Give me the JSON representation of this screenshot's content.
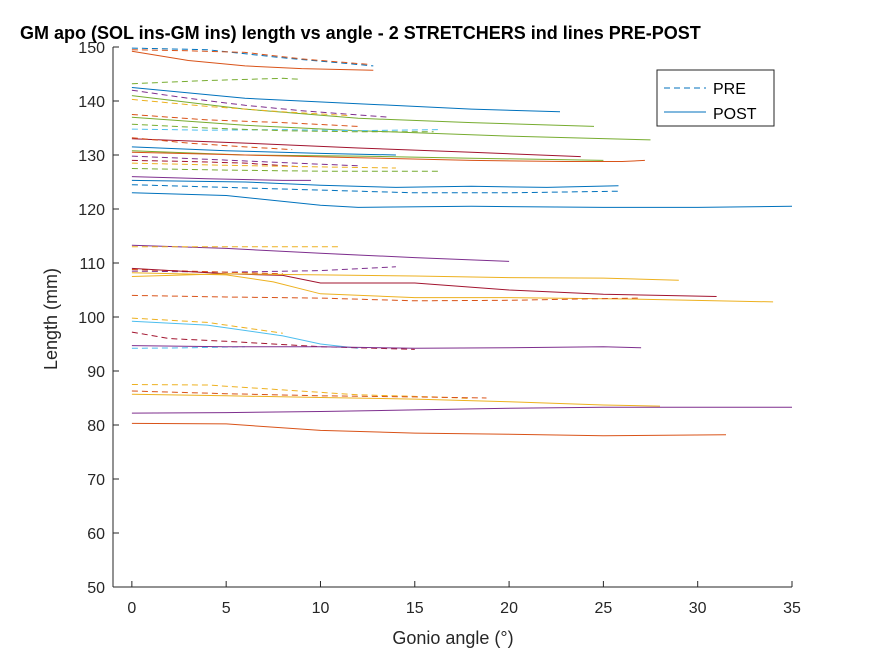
{
  "chart_data": {
    "type": "line",
    "title": "GM apo (SOL ins-GM ins) length vs angle - 2 STRETCHERS ind lines PRE-POST",
    "xlabel": "Gonio angle (°)",
    "ylabel": "Length (mm)",
    "xlim": [
      -1,
      35
    ],
    "ylim": [
      50,
      150
    ],
    "xticks": [
      0,
      5,
      10,
      15,
      20,
      25,
      30,
      35
    ],
    "yticks": [
      50,
      60,
      70,
      80,
      90,
      100,
      110,
      120,
      130,
      140,
      150
    ],
    "grid": false,
    "legend": {
      "placement": "top-right",
      "entries": [
        {
          "label": "PRE",
          "style": "dashed"
        },
        {
          "label": "POST",
          "style": "solid"
        }
      ]
    },
    "colors": [
      "#0072BD",
      "#D95319",
      "#EDB120",
      "#7E2F8E",
      "#77AC30",
      "#4DBEEE",
      "#A2142F"
    ],
    "series": [
      {
        "style": "dashed",
        "color": "#0072BD",
        "points": [
          [
            0,
            149.8
          ],
          [
            4,
            149.5
          ],
          [
            8,
            148
          ],
          [
            12.8,
            146.5
          ]
        ]
      },
      {
        "style": "dashed",
        "color": "#D95319",
        "points": [
          [
            0,
            149.5
          ],
          [
            3,
            149.3
          ],
          [
            6,
            149
          ],
          [
            9,
            147.8
          ],
          [
            12.5,
            146.8
          ]
        ]
      },
      {
        "style": "solid",
        "color": "#D95319",
        "points": [
          [
            0,
            149.2
          ],
          [
            3,
            147.5
          ],
          [
            6,
            146.5
          ],
          [
            9,
            146
          ],
          [
            12.8,
            145.7
          ]
        ]
      },
      {
        "style": "dashed",
        "color": "#77AC30",
        "points": [
          [
            0,
            143.2
          ],
          [
            4,
            143.8
          ],
          [
            8,
            144.2
          ],
          [
            9,
            144
          ]
        ]
      },
      {
        "style": "solid",
        "color": "#0072BD",
        "points": [
          [
            0,
            142.5
          ],
          [
            6,
            140.5
          ],
          [
            12,
            139.5
          ],
          [
            18,
            138.5
          ],
          [
            22.7,
            138
          ]
        ]
      },
      {
        "style": "dashed",
        "color": "#7E2F8E",
        "points": [
          [
            0,
            142
          ],
          [
            3,
            140.5
          ],
          [
            6,
            139.2
          ],
          [
            9,
            138.2
          ],
          [
            13.6,
            137
          ]
        ]
      },
      {
        "style": "solid",
        "color": "#77AC30",
        "points": [
          [
            0,
            141
          ],
          [
            6,
            138.5
          ],
          [
            12,
            136.8
          ],
          [
            18,
            136
          ],
          [
            24.5,
            135.3
          ]
        ]
      },
      {
        "style": "dashed",
        "color": "#EDB120",
        "points": [
          [
            0,
            140.3
          ],
          [
            4,
            139
          ],
          [
            8,
            138
          ],
          [
            11.5,
            137.3
          ]
        ]
      },
      {
        "style": "solid",
        "color": "#77AC30",
        "points": [
          [
            0,
            137
          ],
          [
            6,
            135.5
          ],
          [
            12,
            134.5
          ],
          [
            20,
            133.5
          ],
          [
            27.5,
            132.8
          ]
        ]
      },
      {
        "style": "dashed",
        "color": "#D95319",
        "points": [
          [
            0,
            137.5
          ],
          [
            4,
            136.5
          ],
          [
            8,
            136
          ],
          [
            12,
            135.3
          ]
        ]
      },
      {
        "style": "dashed",
        "color": "#4DBEEE",
        "points": [
          [
            0,
            134.8
          ],
          [
            4,
            134.6
          ],
          [
            8,
            134.7
          ],
          [
            12,
            134.5
          ],
          [
            16.3,
            134.7
          ]
        ]
      },
      {
        "style": "dashed",
        "color": "#77AC30",
        "points": [
          [
            0,
            135.7
          ],
          [
            4,
            135
          ],
          [
            8,
            134.5
          ],
          [
            12,
            134.3
          ],
          [
            16,
            134.3
          ]
        ]
      },
      {
        "style": "solid",
        "color": "#A2142F",
        "points": [
          [
            0,
            133
          ],
          [
            6,
            132.2
          ],
          [
            12,
            131.3
          ],
          [
            18,
            130.5
          ],
          [
            23.8,
            129.7
          ]
        ]
      },
      {
        "style": "dashed",
        "color": "#D95319",
        "points": [
          [
            0,
            133.2
          ],
          [
            3,
            132.2
          ],
          [
            6,
            131.5
          ],
          [
            8.5,
            131
          ]
        ]
      },
      {
        "style": "solid",
        "color": "#77AC30",
        "points": [
          [
            0,
            130.8
          ],
          [
            6,
            130
          ],
          [
            12,
            129.8
          ],
          [
            18,
            129.4
          ],
          [
            25,
            129
          ]
        ]
      },
      {
        "style": "solid",
        "color": "#D95319",
        "points": [
          [
            0,
            130.5
          ],
          [
            6,
            130
          ],
          [
            12,
            129.5
          ],
          [
            18,
            129
          ],
          [
            23,
            128.8
          ],
          [
            26,
            128.8
          ],
          [
            27.2,
            129
          ]
        ]
      },
      {
        "style": "solid",
        "color": "#0072BD",
        "points": [
          [
            0,
            131.5
          ],
          [
            5,
            130.8
          ],
          [
            10,
            130.3
          ],
          [
            14,
            130
          ]
        ]
      },
      {
        "style": "dashed",
        "color": "#7E2F8E",
        "points": [
          [
            0,
            129.8
          ],
          [
            4,
            129.2
          ],
          [
            8,
            128.6
          ],
          [
            12,
            128
          ]
        ]
      },
      {
        "style": "dashed",
        "color": "#A2142F",
        "points": [
          [
            0,
            129
          ],
          [
            3,
            128.8
          ],
          [
            6,
            128.5
          ],
          [
            9,
            127.8
          ]
        ]
      },
      {
        "style": "dashed",
        "color": "#EDB120",
        "points": [
          [
            0,
            128.5
          ],
          [
            5,
            128.1
          ],
          [
            10,
            127.8
          ],
          [
            14,
            127.6
          ]
        ]
      },
      {
        "style": "dashed",
        "color": "#77AC30",
        "points": [
          [
            0,
            127.5
          ],
          [
            5,
            127.2
          ],
          [
            10,
            127
          ],
          [
            16.3,
            127
          ]
        ]
      },
      {
        "style": "solid",
        "color": "#7E2F8E",
        "points": [
          [
            0,
            126
          ],
          [
            4,
            125.6
          ],
          [
            8,
            125.3
          ],
          [
            9.5,
            125.3
          ]
        ]
      },
      {
        "style": "solid",
        "color": "#0072BD",
        "points": [
          [
            0,
            125.3
          ],
          [
            6,
            125
          ],
          [
            10,
            124.4
          ],
          [
            14,
            124
          ],
          [
            18,
            124.2
          ],
          [
            22,
            124
          ],
          [
            25.8,
            124.3
          ]
        ]
      },
      {
        "style": "dashed",
        "color": "#0072BD",
        "points": [
          [
            0,
            124.5
          ],
          [
            5,
            124
          ],
          [
            10,
            123.5
          ],
          [
            15,
            123
          ],
          [
            20,
            123
          ],
          [
            25.8,
            123.3
          ]
        ]
      },
      {
        "style": "solid",
        "color": "#0072BD",
        "points": [
          [
            0,
            123
          ],
          [
            5,
            122.5
          ],
          [
            10,
            120.7
          ],
          [
            12,
            120.3
          ],
          [
            18,
            120.5
          ],
          [
            25,
            120.3
          ],
          [
            30,
            120.3
          ],
          [
            35,
            120.5
          ]
        ]
      },
      {
        "style": "solid",
        "color": "#7E2F8E",
        "points": [
          [
            0,
            113.3
          ],
          [
            5,
            112.7
          ],
          [
            10,
            111.8
          ],
          [
            15,
            111
          ],
          [
            20,
            110.3
          ]
        ]
      },
      {
        "style": "dashed",
        "color": "#EDB120",
        "points": [
          [
            0,
            113
          ],
          [
            5,
            113
          ],
          [
            10,
            113
          ],
          [
            11,
            113
          ]
        ]
      },
      {
        "style": "dashed",
        "color": "#7E2F8E",
        "points": [
          [
            0,
            108.5
          ],
          [
            5,
            108.3
          ],
          [
            10,
            108.6
          ],
          [
            14,
            109.3
          ]
        ]
      },
      {
        "style": "dashed",
        "color": "#D95319",
        "points": [
          [
            0,
            108.8
          ],
          [
            3,
            108.5
          ],
          [
            6,
            108.2
          ],
          [
            8,
            108
          ]
        ]
      },
      {
        "style": "solid",
        "color": "#A2142F",
        "points": [
          [
            0,
            109
          ],
          [
            5,
            108
          ],
          [
            8,
            107.7
          ],
          [
            10,
            106.3
          ],
          [
            15,
            106.3
          ],
          [
            20,
            105
          ],
          [
            25,
            104.2
          ],
          [
            31,
            103.8
          ]
        ]
      },
      {
        "style": "solid",
        "color": "#EDB120",
        "points": [
          [
            0,
            107.5
          ],
          [
            5,
            108
          ],
          [
            10,
            107.8
          ],
          [
            15,
            107.6
          ],
          [
            20,
            107.3
          ],
          [
            25,
            107.2
          ],
          [
            29,
            106.8
          ]
        ]
      },
      {
        "style": "solid",
        "color": "#EDB120",
        "points": [
          [
            0,
            108.2
          ],
          [
            5,
            107.8
          ],
          [
            7.5,
            106.5
          ],
          [
            10,
            104.3
          ],
          [
            15,
            103.6
          ],
          [
            20,
            103.6
          ],
          [
            27,
            103.3
          ],
          [
            34,
            102.8
          ]
        ]
      },
      {
        "style": "dashed",
        "color": "#D95319",
        "points": [
          [
            0,
            104
          ],
          [
            5,
            103.7
          ],
          [
            10,
            103.5
          ],
          [
            15,
            103
          ],
          [
            20,
            103.1
          ],
          [
            25,
            103.4
          ],
          [
            27,
            103.5
          ]
        ]
      },
      {
        "style": "dashed",
        "color": "#EDB120",
        "points": [
          [
            0,
            99.8
          ],
          [
            4,
            99
          ],
          [
            8,
            97
          ]
        ]
      },
      {
        "style": "solid",
        "color": "#4DBEEE",
        "points": [
          [
            0,
            99.2
          ],
          [
            4,
            98.5
          ],
          [
            8,
            96.5
          ],
          [
            10,
            95
          ],
          [
            12,
            94.2
          ]
        ]
      },
      {
        "style": "dashed",
        "color": "#A2142F",
        "points": [
          [
            0,
            97.2
          ],
          [
            2,
            96
          ],
          [
            5,
            95.5
          ],
          [
            10,
            94.5
          ],
          [
            15,
            94
          ]
        ]
      },
      {
        "style": "dashed",
        "color": "#4DBEEE",
        "points": [
          [
            0,
            94.2
          ],
          [
            3,
            94.3
          ],
          [
            6,
            94.5
          ]
        ]
      },
      {
        "style": "solid",
        "color": "#7E2F8E",
        "points": [
          [
            0,
            94.7
          ],
          [
            5,
            94.5
          ],
          [
            10,
            94.5
          ],
          [
            15,
            94.2
          ],
          [
            20,
            94.3
          ],
          [
            25,
            94.5
          ],
          [
            27,
            94.3
          ]
        ]
      },
      {
        "style": "dashed",
        "color": "#EDB120",
        "points": [
          [
            0,
            87.5
          ],
          [
            4,
            87.4
          ],
          [
            8,
            86.5
          ],
          [
            12,
            85.6
          ],
          [
            16,
            85.2
          ],
          [
            18,
            84.9
          ]
        ]
      },
      {
        "style": "dashed",
        "color": "#D95319",
        "points": [
          [
            0,
            86.3
          ],
          [
            5,
            85.8
          ],
          [
            10,
            85.4
          ],
          [
            15,
            85.2
          ],
          [
            18.8,
            85
          ]
        ]
      },
      {
        "style": "solid",
        "color": "#EDB120",
        "points": [
          [
            0,
            85.7
          ],
          [
            5,
            85.4
          ],
          [
            10,
            85.1
          ],
          [
            15,
            84.8
          ],
          [
            20,
            84.3
          ],
          [
            25,
            83.7
          ],
          [
            28,
            83.5
          ]
        ]
      },
      {
        "style": "solid",
        "color": "#7E2F8E",
        "points": [
          [
            0,
            82.2
          ],
          [
            5,
            82.3
          ],
          [
            10,
            82.5
          ],
          [
            15,
            82.8
          ],
          [
            20,
            83.1
          ],
          [
            25,
            83.3
          ],
          [
            30,
            83.3
          ],
          [
            35,
            83.3
          ]
        ]
      },
      {
        "style": "solid",
        "color": "#D95319",
        "points": [
          [
            0,
            80.3
          ],
          [
            5,
            80.2
          ],
          [
            10,
            79
          ],
          [
            15,
            78.5
          ],
          [
            20,
            78.3
          ],
          [
            25,
            78
          ],
          [
            31.5,
            78.2
          ]
        ]
      }
    ]
  }
}
